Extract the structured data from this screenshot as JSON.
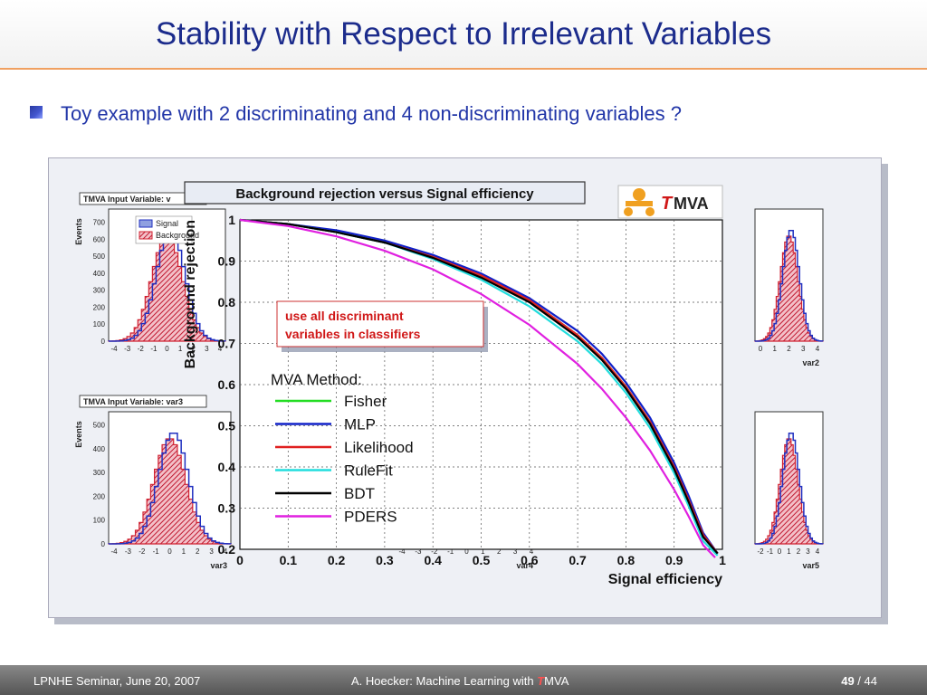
{
  "slide": {
    "title": "Stability with Respect to Irrelevant Variables",
    "bullet": "Toy example with 2 discriminating and 4 non-discriminating variables ?"
  },
  "chart_data": {
    "type": "line",
    "title": "Background rejection versus Signal efficiency",
    "xlabel": "Signal efficiency",
    "ylabel": "Background rejection",
    "xlim": [
      0,
      1
    ],
    "ylim": [
      0.2,
      1
    ],
    "xticks": [
      "0",
      "0.1",
      "0.2",
      "0.3",
      "0.4",
      "0.5",
      "0.6",
      "0.7",
      "0.8",
      "0.9",
      "1"
    ],
    "yticks": [
      "0.2",
      "0.3",
      "0.4",
      "0.5",
      "0.6",
      "0.7",
      "0.8",
      "0.9",
      "1"
    ],
    "grid": true,
    "legend_title": "MVA Method:",
    "annotation": "use all discriminant variables in classifiers",
    "series": [
      {
        "name": "Fisher",
        "color": "#22dd22",
        "x": [
          0,
          0.1,
          0.2,
          0.3,
          0.4,
          0.5,
          0.6,
          0.7,
          0.75,
          0.8,
          0.85,
          0.9,
          0.93,
          0.96,
          0.99
        ],
        "y": [
          1.0,
          0.99,
          0.97,
          0.945,
          0.91,
          0.865,
          0.805,
          0.72,
          0.665,
          0.595,
          0.51,
          0.4,
          0.32,
          0.235,
          0.19
        ]
      },
      {
        "name": "MLP",
        "color": "#1020c8",
        "x": [
          0,
          0.1,
          0.2,
          0.3,
          0.4,
          0.5,
          0.6,
          0.7,
          0.75,
          0.8,
          0.85,
          0.9,
          0.93,
          0.96,
          0.99
        ],
        "y": [
          1.0,
          0.99,
          0.975,
          0.95,
          0.915,
          0.87,
          0.81,
          0.73,
          0.675,
          0.605,
          0.52,
          0.41,
          0.33,
          0.24,
          0.19
        ]
      },
      {
        "name": "Likelihood",
        "color": "#e02020",
        "x": [
          0,
          0.1,
          0.2,
          0.3,
          0.4,
          0.5,
          0.6,
          0.7,
          0.75,
          0.8,
          0.85,
          0.9,
          0.93,
          0.96,
          0.99
        ],
        "y": [
          1.0,
          0.99,
          0.97,
          0.945,
          0.91,
          0.865,
          0.805,
          0.72,
          0.665,
          0.595,
          0.51,
          0.4,
          0.32,
          0.235,
          0.19
        ]
      },
      {
        "name": "RuleFit",
        "color": "#22dddd",
        "x": [
          0,
          0.1,
          0.2,
          0.3,
          0.4,
          0.5,
          0.6,
          0.7,
          0.75,
          0.8,
          0.85,
          0.9,
          0.93,
          0.96,
          0.99
        ],
        "y": [
          1.0,
          0.99,
          0.97,
          0.945,
          0.905,
          0.855,
          0.79,
          0.705,
          0.65,
          0.58,
          0.495,
          0.385,
          0.305,
          0.22,
          0.185
        ]
      },
      {
        "name": "BDT",
        "color": "#000000",
        "x": [
          0,
          0.1,
          0.2,
          0.3,
          0.4,
          0.5,
          0.6,
          0.7,
          0.75,
          0.8,
          0.85,
          0.9,
          0.93,
          0.96,
          0.99
        ],
        "y": [
          1.0,
          0.99,
          0.97,
          0.945,
          0.908,
          0.86,
          0.8,
          0.715,
          0.66,
          0.59,
          0.505,
          0.395,
          0.315,
          0.23,
          0.19
        ]
      },
      {
        "name": "PDERS",
        "color": "#e020e0",
        "x": [
          0,
          0.1,
          0.2,
          0.3,
          0.4,
          0.5,
          0.6,
          0.7,
          0.75,
          0.8,
          0.85,
          0.9,
          0.93,
          0.96,
          0.985
        ],
        "y": [
          1.0,
          0.985,
          0.96,
          0.925,
          0.88,
          0.82,
          0.745,
          0.65,
          0.59,
          0.52,
          0.44,
          0.345,
          0.28,
          0.21,
          0.18
        ]
      }
    ],
    "background_panels": {
      "panel_title": "TMVA Input Variable: var3",
      "panel_title_truncated": "TMVA Input Variable: v",
      "legend": [
        "Signal",
        "Background"
      ],
      "ylabel": "Events",
      "xlabels": [
        "var3",
        "var4",
        "var5",
        "var2"
      ],
      "xticks_a": [
        "-4",
        "-3",
        "-2",
        "-1",
        "0",
        "1",
        "2",
        "3",
        "4"
      ],
      "xticks_b": [
        "-3",
        "-2",
        "-1",
        "0",
        "1",
        "2",
        "3",
        "4"
      ],
      "yticks_top": [
        "0",
        "100",
        "200",
        "300",
        "400",
        "500",
        "600",
        "700"
      ],
      "yticks_bottom": [
        "0",
        "100",
        "200",
        "300",
        "400",
        "500"
      ],
      "colors": {
        "signal": "#2030c0",
        "background": "#d02030"
      }
    },
    "logo": {
      "text_t": "T",
      "text_rest": "MVA",
      "color": "#d01818"
    }
  },
  "footer": {
    "left": "LPNHE Seminar, June 20, 2007",
    "center_prefix": "A. Hoecker: Machine Learning with ",
    "center_t": "T",
    "center_rest": "MVA",
    "page": "49",
    "separator": " / ",
    "total": "44"
  }
}
